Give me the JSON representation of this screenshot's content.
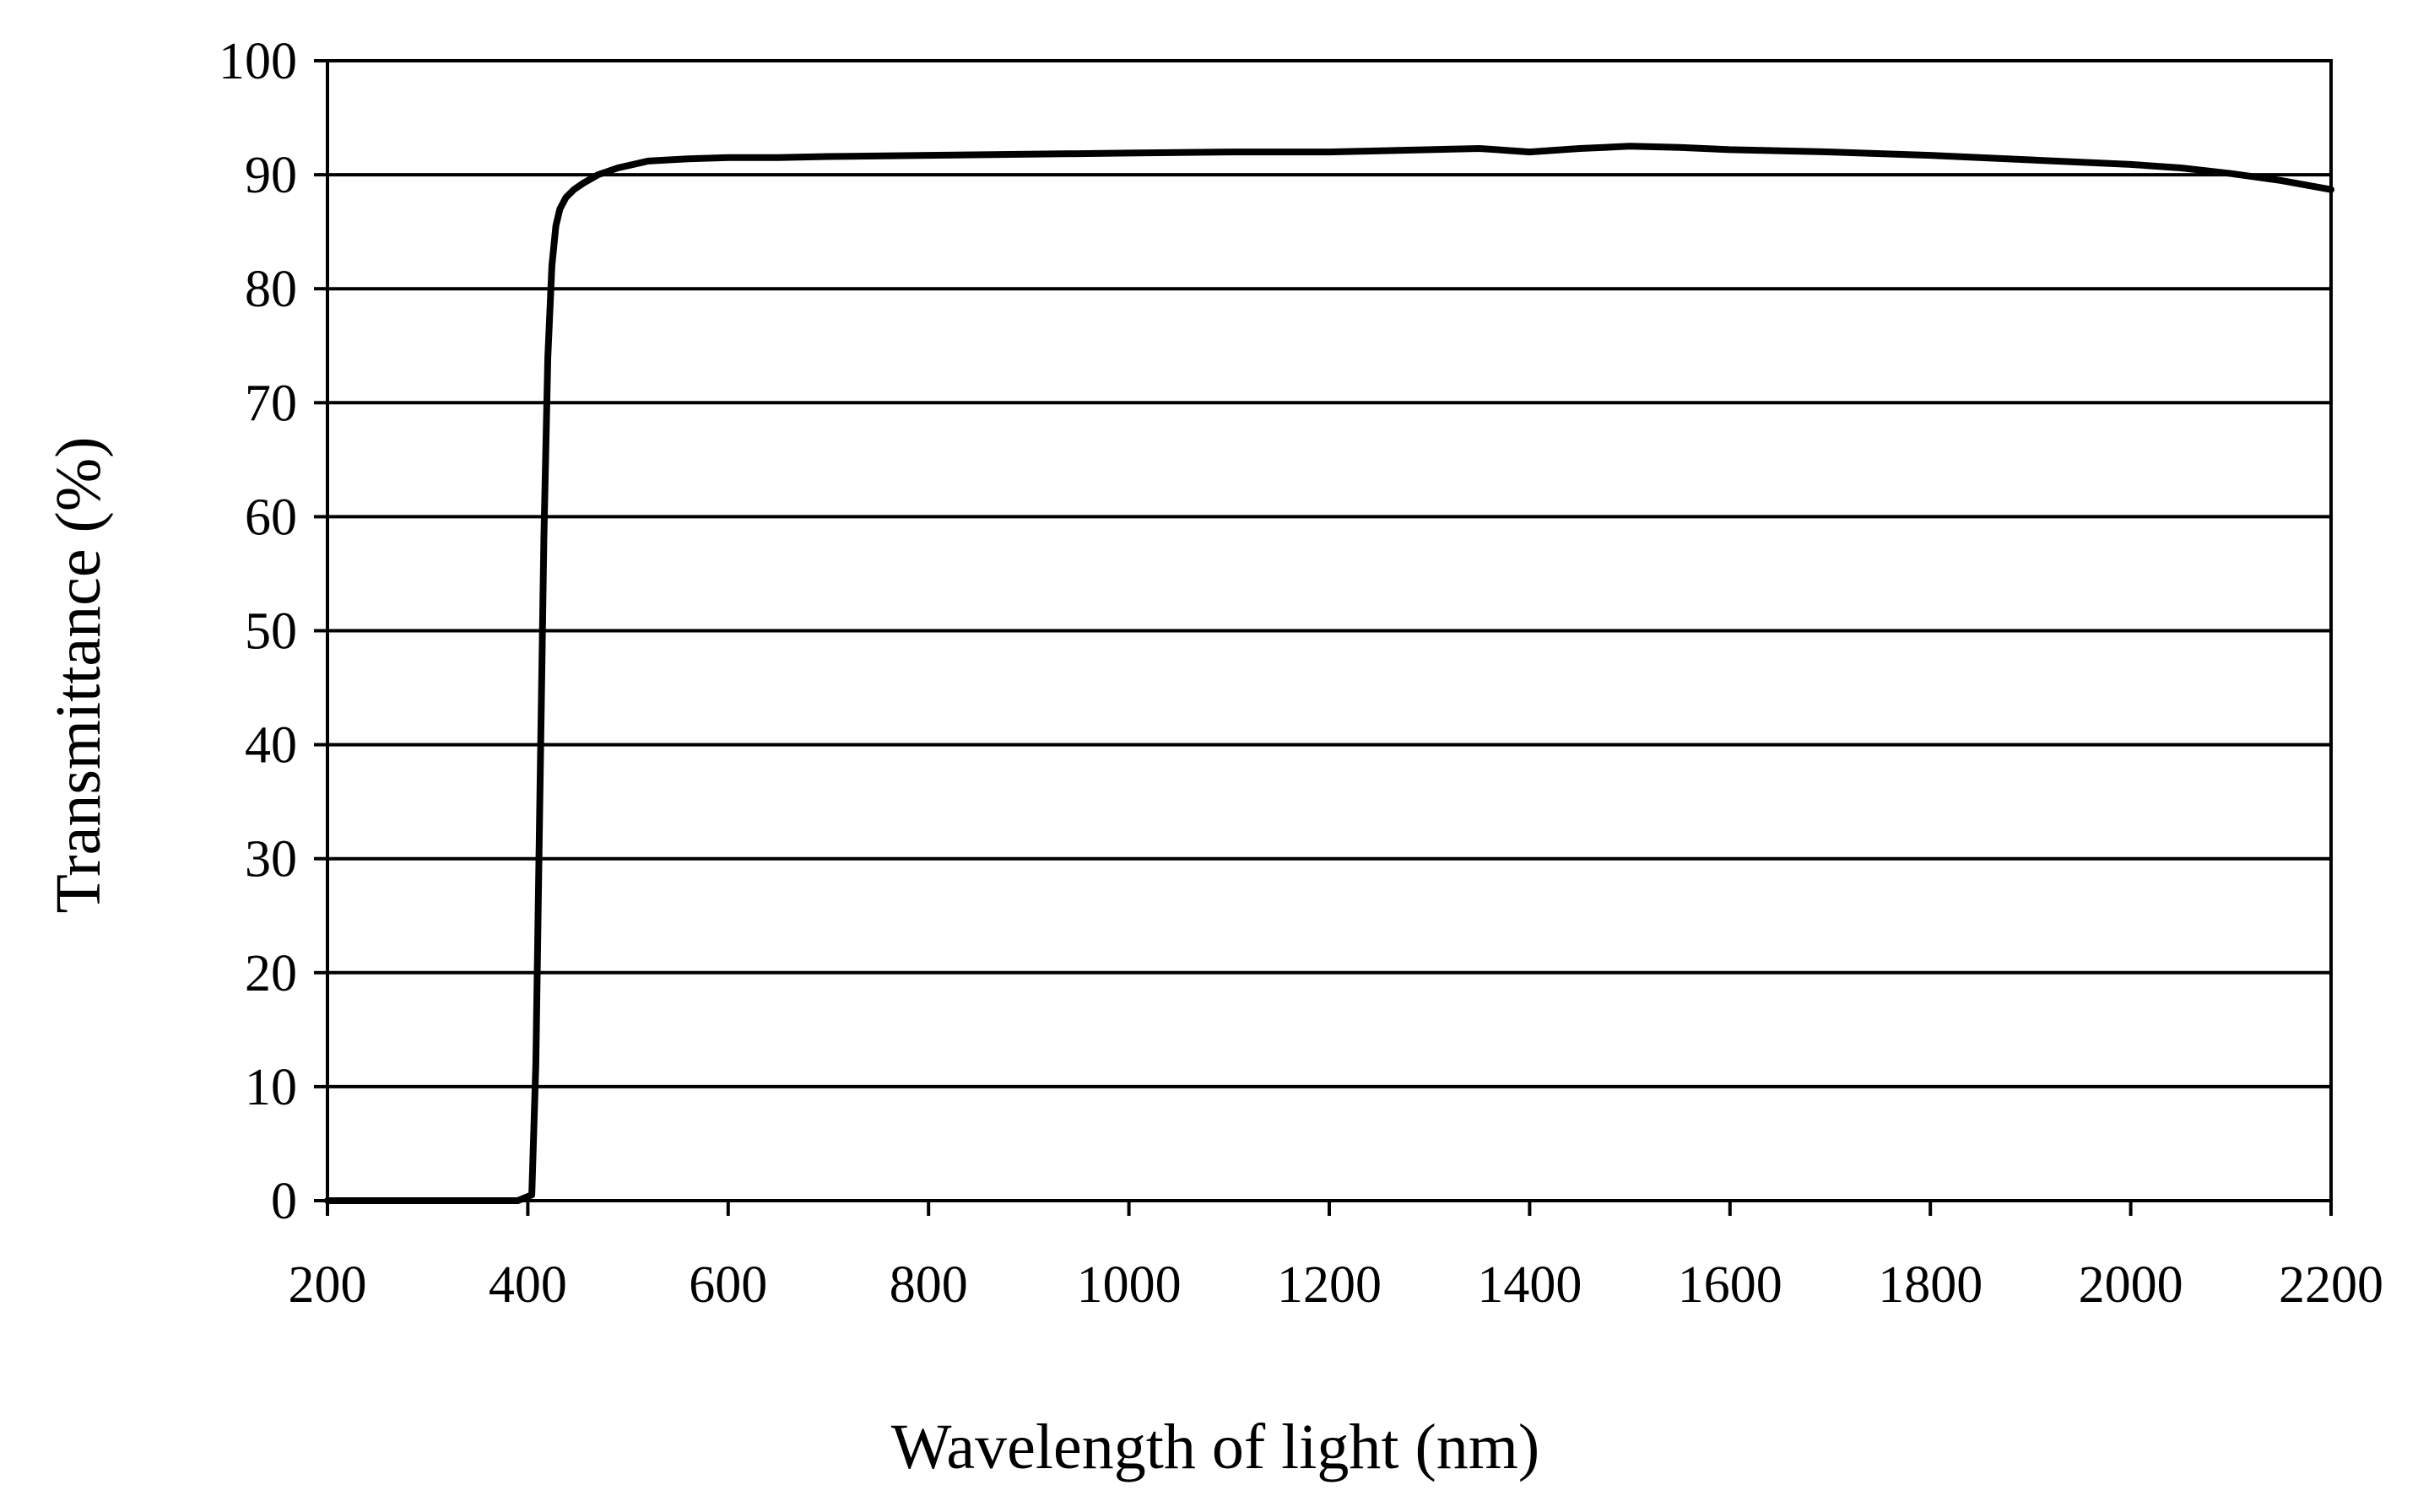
{
  "chart_data": {
    "type": "line",
    "title": "",
    "xlabel": "Wavelength of light (nm)",
    "ylabel": "Transmittance (%)",
    "xlim": [
      200,
      2200
    ],
    "ylim": [
      0,
      100
    ],
    "x_ticks": [
      200,
      400,
      600,
      800,
      1000,
      1200,
      1400,
      1600,
      1800,
      2000,
      2200
    ],
    "y_ticks": [
      0,
      10,
      20,
      30,
      40,
      50,
      60,
      70,
      80,
      90,
      100
    ],
    "x_tick_labels": [
      "200",
      "400",
      "600",
      "800",
      "1000",
      "1200",
      "1400",
      "1600",
      "1800",
      "2000",
      "2200"
    ],
    "y_tick_labels": [
      "0",
      "10",
      "20",
      "30",
      "40",
      "50",
      "60",
      "70",
      "80",
      "90",
      "100"
    ],
    "grid": "horizontal",
    "legend": "none",
    "series": [
      {
        "color": "#000000",
        "x": [
          200,
          300,
          390,
          404,
          408,
          412,
          416,
          420,
          424,
          428,
          432,
          438,
          446,
          456,
          470,
          490,
          520,
          560,
          600,
          650,
          700,
          800,
          900,
          1000,
          1100,
          1200,
          1300,
          1350,
          1400,
          1450,
          1500,
          1550,
          1600,
          1700,
          1800,
          1900,
          2000,
          2050,
          2100,
          2150,
          2200
        ],
        "y": [
          0,
          0,
          0,
          0.5,
          12,
          35,
          58,
          74,
          82,
          85.5,
          87,
          88,
          88.7,
          89.3,
          90,
          90.6,
          91.2,
          91.4,
          91.5,
          91.5,
          91.6,
          91.7,
          91.8,
          91.9,
          92,
          92,
          92.2,
          92.3,
          92,
          92.3,
          92.5,
          92.4,
          92.2,
          92,
          91.7,
          91.3,
          90.9,
          90.6,
          90.1,
          89.5,
          88.7
        ]
      }
    ]
  }
}
